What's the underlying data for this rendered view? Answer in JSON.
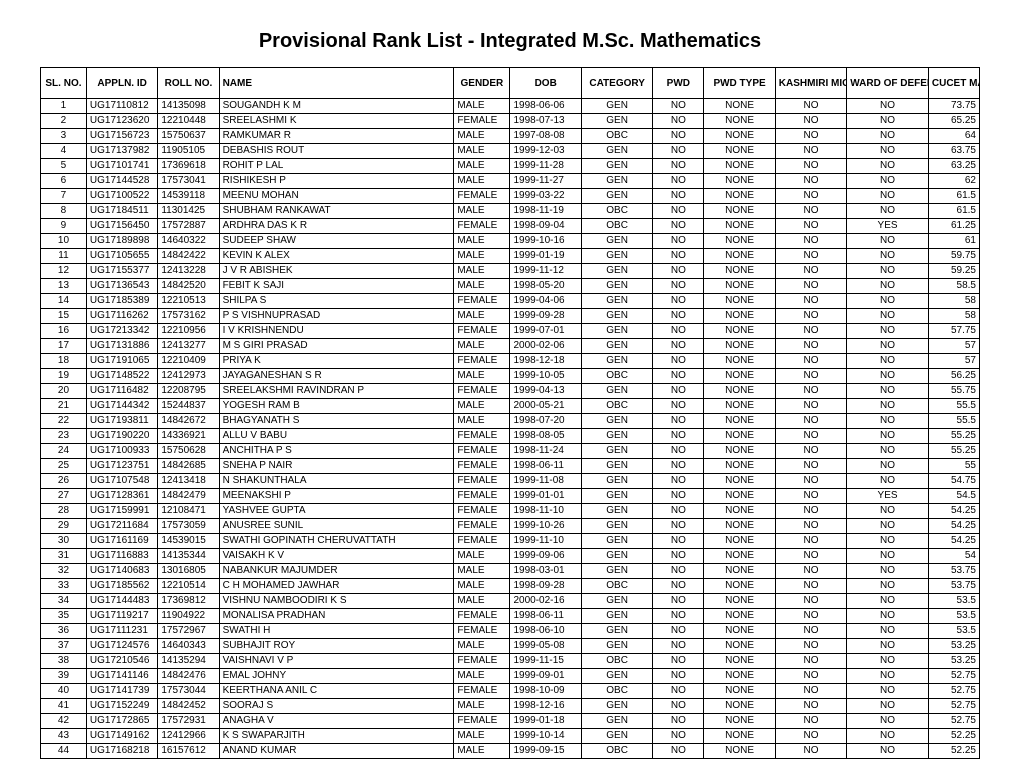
{
  "title": "Provisional Rank List - Integrated M.Sc. Mathematics",
  "columns": [
    "SL. NO.",
    "APPLN. ID",
    "ROLL NO.",
    "NAME",
    "GENDER",
    "DOB",
    "CATEGORY",
    "PWD",
    "PWD TYPE",
    "KASHMIRI MIGRANTS",
    "WARD OF DEFENCE PERSONNEL",
    "CUCET MARKS"
  ],
  "column_align": [
    "center",
    "left",
    "left",
    "left",
    "left",
    "left",
    "center",
    "center",
    "center",
    "center",
    "center",
    "right"
  ],
  "rows": [
    [
      "1",
      "UG17110812",
      "14135098",
      "SOUGANDH K M",
      "MALE",
      "1998-06-06",
      "GEN",
      "NO",
      "NONE",
      "NO",
      "NO",
      "73.75"
    ],
    [
      "2",
      "UG17123620",
      "12210448",
      "SREELASHMI K",
      "FEMALE",
      "1998-07-13",
      "GEN",
      "NO",
      "NONE",
      "NO",
      "NO",
      "65.25"
    ],
    [
      "3",
      "UG17156723",
      "15750637",
      "RAMKUMAR R",
      "MALE",
      "1997-08-08",
      "OBC",
      "NO",
      "NONE",
      "NO",
      "NO",
      "64"
    ],
    [
      "4",
      "UG17137982",
      "11905105",
      "DEBASHIS ROUT",
      "MALE",
      "1999-12-03",
      "GEN",
      "NO",
      "NONE",
      "NO",
      "NO",
      "63.75"
    ],
    [
      "5",
      "UG17101741",
      "17369618",
      "ROHIT P LAL",
      "MALE",
      "1999-11-28",
      "GEN",
      "NO",
      "NONE",
      "NO",
      "NO",
      "63.25"
    ],
    [
      "6",
      "UG17144528",
      "17573041",
      "RISHIKESH P",
      "MALE",
      "1999-11-27",
      "GEN",
      "NO",
      "NONE",
      "NO",
      "NO",
      "62"
    ],
    [
      "7",
      "UG17100522",
      "14539118",
      "MEENU MOHAN",
      "FEMALE",
      "1999-03-22",
      "GEN",
      "NO",
      "NONE",
      "NO",
      "NO",
      "61.5"
    ],
    [
      "8",
      "UG17184511",
      "11301425",
      "SHUBHAM RANKAWAT",
      "MALE",
      "1998-11-19",
      "OBC",
      "NO",
      "NONE",
      "NO",
      "NO",
      "61.5"
    ],
    [
      "9",
      "UG17156450",
      "17572887",
      "ARDHRA DAS K R",
      "FEMALE",
      "1998-09-04",
      "OBC",
      "NO",
      "NONE",
      "NO",
      "YES",
      "61.25"
    ],
    [
      "10",
      "UG17189898",
      "14640322",
      "SUDEEP SHAW",
      "MALE",
      "1999-10-16",
      "GEN",
      "NO",
      "NONE",
      "NO",
      "NO",
      "61"
    ],
    [
      "11",
      "UG17105655",
      "14842422",
      "KEVIN K ALEX",
      "MALE",
      "1999-01-19",
      "GEN",
      "NO",
      "NONE",
      "NO",
      "NO",
      "59.75"
    ],
    [
      "12",
      "UG17155377",
      "12413228",
      "J V R ABISHEK",
      "MALE",
      "1999-11-12",
      "GEN",
      "NO",
      "NONE",
      "NO",
      "NO",
      "59.25"
    ],
    [
      "13",
      "UG17136543",
      "14842520",
      "FEBIT K SAJI",
      "MALE",
      "1998-05-20",
      "GEN",
      "NO",
      "NONE",
      "NO",
      "NO",
      "58.5"
    ],
    [
      "14",
      "UG17185389",
      "12210513",
      "SHILPA S",
      "FEMALE",
      "1999-04-06",
      "GEN",
      "NO",
      "NONE",
      "NO",
      "NO",
      "58"
    ],
    [
      "15",
      "UG17116262",
      "17573162",
      "P S VISHNUPRASAD",
      "MALE",
      "1999-09-28",
      "GEN",
      "NO",
      "NONE",
      "NO",
      "NO",
      "58"
    ],
    [
      "16",
      "UG17213342",
      "12210956",
      "I V KRISHNENDU",
      "FEMALE",
      "1999-07-01",
      "GEN",
      "NO",
      "NONE",
      "NO",
      "NO",
      "57.75"
    ],
    [
      "17",
      "UG17131886",
      "12413277",
      "M S GIRI PRASAD",
      "MALE",
      "2000-02-06",
      "GEN",
      "NO",
      "NONE",
      "NO",
      "NO",
      "57"
    ],
    [
      "18",
      "UG17191065",
      "12210409",
      "PRIYA K",
      "FEMALE",
      "1998-12-18",
      "GEN",
      "NO",
      "NONE",
      "NO",
      "NO",
      "57"
    ],
    [
      "19",
      "UG17148522",
      "12412973",
      "JAYAGANESHAN S R",
      "MALE",
      "1999-10-05",
      "OBC",
      "NO",
      "NONE",
      "NO",
      "NO",
      "56.25"
    ],
    [
      "20",
      "UG17116482",
      "12208795",
      "SREELAKSHMI RAVINDRAN P",
      "FEMALE",
      "1999-04-13",
      "GEN",
      "NO",
      "NONE",
      "NO",
      "NO",
      "55.75"
    ],
    [
      "21",
      "UG17144342",
      "15244837",
      "YOGESH RAM B",
      "MALE",
      "2000-05-21",
      "OBC",
      "NO",
      "NONE",
      "NO",
      "NO",
      "55.5"
    ],
    [
      "22",
      "UG17193811",
      "14842672",
      "BHAGYANATH S",
      "MALE",
      "1998-07-20",
      "GEN",
      "NO",
      "NONE",
      "NO",
      "NO",
      "55.5"
    ],
    [
      "23",
      "UG17190220",
      "14336921",
      "ALLU V BABU",
      "FEMALE",
      "1998-08-05",
      "GEN",
      "NO",
      "NONE",
      "NO",
      "NO",
      "55.25"
    ],
    [
      "24",
      "UG17100933",
      "15750628",
      "ANCHITHA P S",
      "FEMALE",
      "1998-11-24",
      "GEN",
      "NO",
      "NONE",
      "NO",
      "NO",
      "55.25"
    ],
    [
      "25",
      "UG17123751",
      "14842685",
      "SNEHA P NAIR",
      "FEMALE",
      "1998-06-11",
      "GEN",
      "NO",
      "NONE",
      "NO",
      "NO",
      "55"
    ],
    [
      "26",
      "UG17107548",
      "12413418",
      "N SHAKUNTHALA",
      "FEMALE",
      "1999-11-08",
      "GEN",
      "NO",
      "NONE",
      "NO",
      "NO",
      "54.75"
    ],
    [
      "27",
      "UG17128361",
      "14842479",
      "MEENAKSHI P",
      "FEMALE",
      "1999-01-01",
      "GEN",
      "NO",
      "NONE",
      "NO",
      "YES",
      "54.5"
    ],
    [
      "28",
      "UG17159991",
      "12108471",
      "YASHVEE GUPTA",
      "FEMALE",
      "1998-11-10",
      "GEN",
      "NO",
      "NONE",
      "NO",
      "NO",
      "54.25"
    ],
    [
      "29",
      "UG17211684",
      "17573059",
      "ANUSREE SUNIL",
      "FEMALE",
      "1999-10-26",
      "GEN",
      "NO",
      "NONE",
      "NO",
      "NO",
      "54.25"
    ],
    [
      "30",
      "UG17161169",
      "14539015",
      "SWATHI GOPINATH CHERUVATTATH",
      "FEMALE",
      "1999-11-10",
      "GEN",
      "NO",
      "NONE",
      "NO",
      "NO",
      "54.25"
    ],
    [
      "31",
      "UG17116883",
      "14135344",
      "VAISAKH K V",
      "MALE",
      "1999-09-06",
      "GEN",
      "NO",
      "NONE",
      "NO",
      "NO",
      "54"
    ],
    [
      "32",
      "UG17140683",
      "13016805",
      "NABANKUR MAJUMDER",
      "MALE",
      "1998-03-01",
      "GEN",
      "NO",
      "NONE",
      "NO",
      "NO",
      "53.75"
    ],
    [
      "33",
      "UG17185562",
      "12210514",
      "C H MOHAMED JAWHAR",
      "MALE",
      "1998-09-28",
      "OBC",
      "NO",
      "NONE",
      "NO",
      "NO",
      "53.75"
    ],
    [
      "34",
      "UG17144483",
      "17369812",
      "VISHNU NAMBOODIRI K S",
      "MALE",
      "2000-02-16",
      "GEN",
      "NO",
      "NONE",
      "NO",
      "NO",
      "53.5"
    ],
    [
      "35",
      "UG17119217",
      "11904922",
      "MONALISA PRADHAN",
      "FEMALE",
      "1998-06-11",
      "GEN",
      "NO",
      "NONE",
      "NO",
      "NO",
      "53.5"
    ],
    [
      "36",
      "UG17111231",
      "17572967",
      "SWATHI H",
      "FEMALE",
      "1998-06-10",
      "GEN",
      "NO",
      "NONE",
      "NO",
      "NO",
      "53.5"
    ],
    [
      "37",
      "UG17124576",
      "14640343",
      "SUBHAJIT ROY",
      "MALE",
      "1999-05-08",
      "GEN",
      "NO",
      "NONE",
      "NO",
      "NO",
      "53.25"
    ],
    [
      "38",
      "UG17210546",
      "14135294",
      "VAISHNAVI V P",
      "FEMALE",
      "1999-11-15",
      "OBC",
      "NO",
      "NONE",
      "NO",
      "NO",
      "53.25"
    ],
    [
      "39",
      "UG17141146",
      "14842476",
      "EMAL JOHNY",
      "MALE",
      "1999-09-01",
      "GEN",
      "NO",
      "NONE",
      "NO",
      "NO",
      "52.75"
    ],
    [
      "40",
      "UG17141739",
      "17573044",
      "KEERTHANA ANIL C",
      "FEMALE",
      "1998-10-09",
      "OBC",
      "NO",
      "NONE",
      "NO",
      "NO",
      "52.75"
    ],
    [
      "41",
      "UG17152249",
      "14842452",
      "SOORAJ S",
      "MALE",
      "1998-12-16",
      "GEN",
      "NO",
      "NONE",
      "NO",
      "NO",
      "52.75"
    ],
    [
      "42",
      "UG17172865",
      "17572931",
      "ANAGHA V",
      "FEMALE",
      "1999-01-18",
      "GEN",
      "NO",
      "NONE",
      "NO",
      "NO",
      "52.75"
    ],
    [
      "43",
      "UG17149162",
      "12412966",
      "K S SWAPARJITH",
      "MALE",
      "1999-10-14",
      "GEN",
      "NO",
      "NONE",
      "NO",
      "NO",
      "52.25"
    ],
    [
      "44",
      "UG17168218",
      "16157612",
      "ANAND KUMAR",
      "MALE",
      "1999-09-15",
      "OBC",
      "NO",
      "NONE",
      "NO",
      "NO",
      "52.25"
    ]
  ]
}
